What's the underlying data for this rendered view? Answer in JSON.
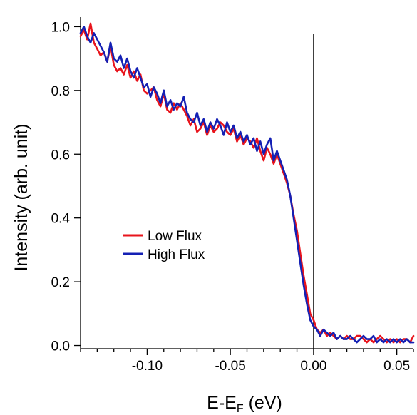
{
  "chart_data": {
    "type": "line",
    "title": "",
    "xlabel": {
      "main": "E-E",
      "sub": "F",
      "suffix": " (eV)"
    },
    "ylabel": "Intensity (arb. unit)",
    "xlim": [
      -0.14,
      0.06
    ],
    "ylim": [
      -0.01,
      1.03
    ],
    "x_ticks": [
      -0.1,
      -0.05,
      0.0,
      0.05
    ],
    "x_tick_labels": [
      "-0.10",
      "-0.05",
      "0.00",
      "0.05"
    ],
    "y_ticks": [
      0.0,
      0.2,
      0.4,
      0.6,
      0.8,
      1.0
    ],
    "y_tick_labels": [
      "0.0",
      "0.2",
      "0.4",
      "0.6",
      "0.8",
      "1.0"
    ],
    "fermi_line_x": 0.0,
    "grid": false,
    "legend_position": "middle-left",
    "series": [
      {
        "name": "Low Flux",
        "color": "#e8141c",
        "x": [
          -0.14,
          -0.138,
          -0.136,
          -0.134,
          -0.132,
          -0.13,
          -0.128,
          -0.126,
          -0.124,
          -0.122,
          -0.12,
          -0.118,
          -0.116,
          -0.114,
          -0.112,
          -0.11,
          -0.108,
          -0.106,
          -0.104,
          -0.102,
          -0.1,
          -0.098,
          -0.096,
          -0.094,
          -0.092,
          -0.09,
          -0.088,
          -0.086,
          -0.084,
          -0.082,
          -0.08,
          -0.078,
          -0.076,
          -0.074,
          -0.072,
          -0.07,
          -0.068,
          -0.066,
          -0.064,
          -0.062,
          -0.06,
          -0.058,
          -0.056,
          -0.054,
          -0.052,
          -0.05,
          -0.048,
          -0.046,
          -0.044,
          -0.042,
          -0.04,
          -0.038,
          -0.036,
          -0.034,
          -0.032,
          -0.03,
          -0.028,
          -0.026,
          -0.024,
          -0.022,
          -0.02,
          -0.018,
          -0.016,
          -0.014,
          -0.012,
          -0.01,
          -0.008,
          -0.006,
          -0.004,
          -0.002,
          0.0,
          0.002,
          0.004,
          0.006,
          0.008,
          0.01,
          0.012,
          0.014,
          0.016,
          0.018,
          0.02,
          0.022,
          0.024,
          0.026,
          0.028,
          0.03,
          0.032,
          0.034,
          0.036,
          0.038,
          0.04,
          0.042,
          0.044,
          0.046,
          0.048,
          0.05,
          0.052,
          0.054,
          0.056,
          0.058,
          0.06
        ],
        "y": [
          0.97,
          0.99,
          0.96,
          1.01,
          0.95,
          0.93,
          0.91,
          0.92,
          0.89,
          0.94,
          0.88,
          0.86,
          0.87,
          0.85,
          0.88,
          0.84,
          0.86,
          0.83,
          0.85,
          0.8,
          0.79,
          0.8,
          0.81,
          0.77,
          0.75,
          0.79,
          0.74,
          0.73,
          0.76,
          0.74,
          0.76,
          0.74,
          0.72,
          0.69,
          0.71,
          0.67,
          0.68,
          0.7,
          0.66,
          0.69,
          0.67,
          0.68,
          0.7,
          0.69,
          0.67,
          0.66,
          0.68,
          0.64,
          0.66,
          0.63,
          0.65,
          0.64,
          0.62,
          0.65,
          0.61,
          0.58,
          0.62,
          0.6,
          0.57,
          0.6,
          0.57,
          0.54,
          0.51,
          0.47,
          0.41,
          0.36,
          0.29,
          0.22,
          0.16,
          0.1,
          0.08,
          0.05,
          0.04,
          0.05,
          0.03,
          0.04,
          0.03,
          0.02,
          0.03,
          0.02,
          0.03,
          0.02,
          0.02,
          0.03,
          0.03,
          0.02,
          0.01,
          0.02,
          0.01,
          0.02,
          0.03,
          0.02,
          0.01,
          0.02,
          0.01,
          0.02,
          0.01,
          0.02,
          0.02,
          0.01,
          0.03
        ]
      },
      {
        "name": "High Flux",
        "color": "#1420b4",
        "x": [
          -0.14,
          -0.138,
          -0.136,
          -0.134,
          -0.132,
          -0.13,
          -0.128,
          -0.126,
          -0.124,
          -0.122,
          -0.12,
          -0.118,
          -0.116,
          -0.114,
          -0.112,
          -0.11,
          -0.108,
          -0.106,
          -0.104,
          -0.102,
          -0.1,
          -0.098,
          -0.096,
          -0.094,
          -0.092,
          -0.09,
          -0.088,
          -0.086,
          -0.084,
          -0.082,
          -0.08,
          -0.078,
          -0.076,
          -0.074,
          -0.072,
          -0.07,
          -0.068,
          -0.066,
          -0.064,
          -0.062,
          -0.06,
          -0.058,
          -0.056,
          -0.054,
          -0.052,
          -0.05,
          -0.048,
          -0.046,
          -0.044,
          -0.042,
          -0.04,
          -0.038,
          -0.036,
          -0.034,
          -0.032,
          -0.03,
          -0.028,
          -0.026,
          -0.024,
          -0.022,
          -0.02,
          -0.018,
          -0.016,
          -0.014,
          -0.012,
          -0.01,
          -0.008,
          -0.006,
          -0.004,
          -0.002,
          0.0,
          0.002,
          0.004,
          0.006,
          0.008,
          0.01,
          0.012,
          0.014,
          0.016,
          0.018,
          0.02,
          0.022,
          0.024,
          0.026,
          0.028,
          0.03,
          0.032,
          0.034,
          0.036,
          0.038,
          0.04,
          0.042,
          0.044,
          0.046,
          0.048,
          0.05,
          0.052,
          0.054,
          0.056,
          0.058,
          0.06
        ],
        "y": [
          0.98,
          1.0,
          0.97,
          0.95,
          0.98,
          0.96,
          0.94,
          0.92,
          0.89,
          0.95,
          0.9,
          0.89,
          0.91,
          0.87,
          0.9,
          0.86,
          0.84,
          0.87,
          0.84,
          0.81,
          0.82,
          0.78,
          0.81,
          0.79,
          0.76,
          0.8,
          0.75,
          0.77,
          0.74,
          0.76,
          0.75,
          0.78,
          0.73,
          0.71,
          0.7,
          0.73,
          0.69,
          0.71,
          0.67,
          0.7,
          0.68,
          0.71,
          0.69,
          0.66,
          0.7,
          0.67,
          0.69,
          0.65,
          0.67,
          0.64,
          0.66,
          0.63,
          0.65,
          0.61,
          0.64,
          0.6,
          0.63,
          0.65,
          0.58,
          0.61,
          0.58,
          0.55,
          0.52,
          0.47,
          0.4,
          0.33,
          0.26,
          0.19,
          0.13,
          0.08,
          0.06,
          0.05,
          0.03,
          0.05,
          0.04,
          0.03,
          0.04,
          0.02,
          0.03,
          0.02,
          0.02,
          0.03,
          0.02,
          0.01,
          0.02,
          0.03,
          0.02,
          0.02,
          0.03,
          0.01,
          0.02,
          0.01,
          0.02,
          0.01,
          0.02,
          0.01,
          0.02,
          0.01,
          0.02,
          0.01,
          0.01
        ]
      }
    ]
  }
}
